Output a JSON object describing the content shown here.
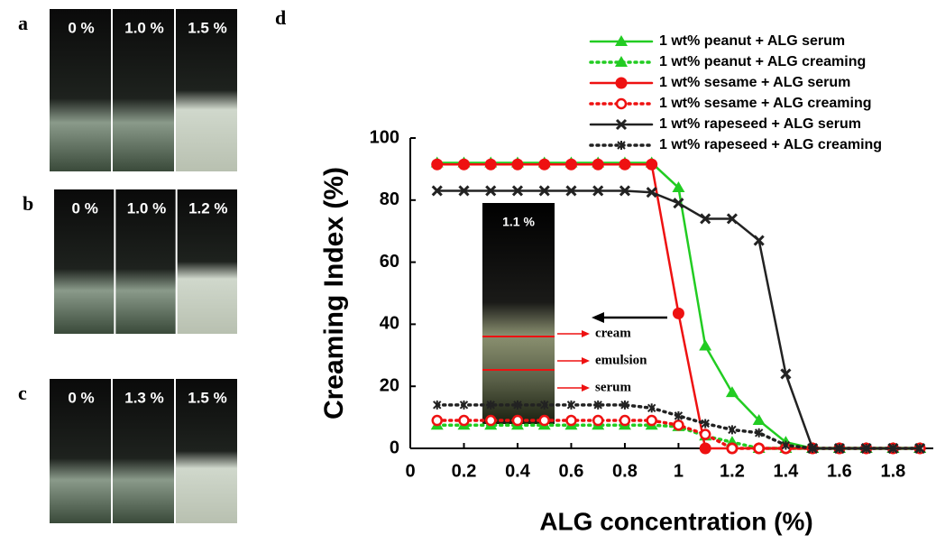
{
  "panels": [
    {
      "letter": "a",
      "labels": [
        "0 %",
        "1.0 %",
        "1.5 %"
      ]
    },
    {
      "letter": "b",
      "labels": [
        "0 %",
        "1.0 %",
        "1.2 %"
      ]
    },
    {
      "letter": "c",
      "labels": [
        "0 %",
        "1.3 %",
        "1.5 %"
      ]
    }
  ],
  "chart_data": {
    "type": "line",
    "panel_label": "d",
    "x_label": "ALG concentration (%)",
    "y_label": "Creaming Index (%)",
    "x": [
      0.1,
      0.2,
      0.3,
      0.4,
      0.5,
      0.6,
      0.7,
      0.8,
      0.9,
      1.0,
      1.1,
      1.2,
      1.3,
      1.4,
      1.5,
      1.6,
      1.7,
      1.8,
      1.9
    ],
    "xlim": [
      0,
      1.95
    ],
    "xticks": [
      0,
      0.2,
      0.4,
      0.6,
      0.8,
      1,
      1.2,
      1.4,
      1.6,
      1.8
    ],
    "ylim": [
      0,
      100
    ],
    "yticks": [
      0,
      20,
      40,
      60,
      80,
      100
    ],
    "legend": "top-right",
    "series": [
      {
        "name": "1 wt% peanut + ALG serum",
        "color": "#22cc22",
        "style": "solid",
        "marker": "triangle",
        "values": [
          92,
          92,
          92,
          92,
          92,
          92,
          92,
          92,
          92,
          84,
          33,
          18,
          9,
          2,
          0,
          0,
          0,
          0,
          0
        ]
      },
      {
        "name": "1 wt% peanut + ALG creaming",
        "color": "#22cc22",
        "style": "dotted",
        "marker": "triangle",
        "values": [
          7.5,
          7.5,
          7.5,
          7.5,
          7.5,
          7.5,
          7.5,
          7.5,
          7.5,
          7,
          4,
          2,
          0,
          0,
          0,
          0,
          0,
          0,
          0
        ]
      },
      {
        "name": "1 wt% sesame + ALG serum",
        "color": "#ee1111",
        "style": "solid",
        "marker": "circle",
        "values": [
          91.5,
          91.5,
          91.5,
          91.5,
          91.5,
          91.5,
          91.5,
          91.5,
          91.5,
          43.5,
          0,
          0,
          0,
          0,
          0,
          0,
          0,
          0,
          0
        ]
      },
      {
        "name": "1 wt% sesame + ALG creaming",
        "color": "#ee1111",
        "style": "dotted",
        "marker": "open-circle",
        "values": [
          9,
          9,
          9,
          9,
          9,
          9,
          9,
          9,
          9,
          7.5,
          4.5,
          0,
          0,
          0,
          0,
          0,
          0,
          0,
          0
        ]
      },
      {
        "name": "1 wt% rapeseed + ALG serum",
        "color": "#222222",
        "style": "solid",
        "marker": "x",
        "values": [
          83,
          83,
          83,
          83,
          83,
          83,
          83,
          83,
          82.5,
          79,
          74,
          74,
          67,
          24,
          0,
          0,
          0,
          0,
          0
        ]
      },
      {
        "name": "1 wt% rapeseed + ALG creaming",
        "color": "#222222",
        "style": "dotted",
        "marker": "star",
        "values": [
          14,
          14,
          14,
          14,
          14,
          14,
          14,
          14,
          13,
          10.5,
          8,
          6,
          5,
          1,
          0,
          0,
          0,
          0,
          0
        ]
      }
    ],
    "inset": {
      "label": "1.1 %",
      "annotations": [
        "cream",
        "emulsion",
        "serum"
      ]
    }
  }
}
